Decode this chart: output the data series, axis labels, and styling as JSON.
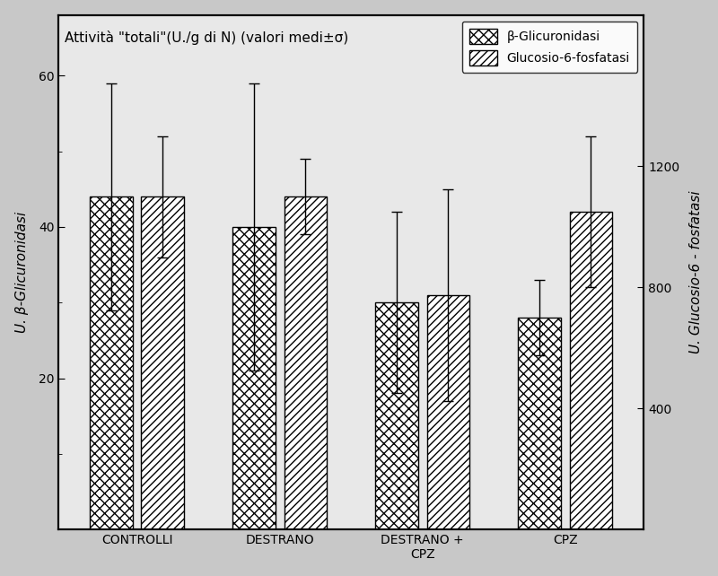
{
  "title": "Attività \"totali\"(U./g di N) (valori medi±σ)",
  "categories": [
    "CONTROLLI",
    "DESTRANO",
    "DESTRANO +\nCPZ",
    "CPZ"
  ],
  "beta_gluc_values": [
    44,
    40,
    30,
    28
  ],
  "beta_gluc_errors": [
    15,
    19,
    12,
    5
  ],
  "gluc6p_values": [
    44,
    44,
    31,
    42
  ],
  "gluc6p_errors": [
    8,
    5,
    14,
    10
  ],
  "ylabel_left": "U. β-Glicuronidasi",
  "ylabel_right": "U. Glucosio-6 - fosfatasi",
  "ylim_left": [
    0,
    68
  ],
  "yticks_left": [
    20,
    40,
    60
  ],
  "ylim_right": [
    0,
    1700
  ],
  "yticks_right": [
    400,
    800,
    1200
  ],
  "legend_label1": "β-Glicuronidasi",
  "legend_label2": "Glucosio-6-fosfatasi",
  "outer_bg_color": "#c8c8c8",
  "plot_bg_color": "#e8e8e8",
  "bar_edge_color": "#000000",
  "bar_width": 0.3,
  "title_fontsize": 11,
  "label_fontsize": 11,
  "tick_fontsize": 10,
  "legend_fontsize": 10
}
